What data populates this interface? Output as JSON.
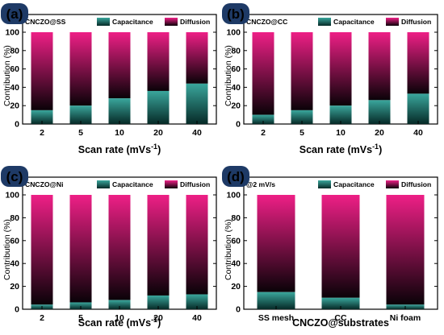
{
  "colors": {
    "capacitance_top": "#3aa69c",
    "capacitance_bottom": "#062a27",
    "diffusion_top": "#ee1f86",
    "diffusion_bottom": "#0a0208",
    "badge_fill": "#1e3a66",
    "badge_text": "#ffffff"
  },
  "chart_data": [
    {
      "type": "bar",
      "stacked": true,
      "panel_label": "(a)",
      "inner_title": "CNCZO@SS",
      "categories": [
        "2",
        "5",
        "10",
        "20",
        "40"
      ],
      "xlabel": "Scan rate (mVs",
      "xlabel_sup": "-1",
      "xlabel_tail": ")",
      "ylabel": "Contribution (%)",
      "ylim": [
        0,
        100
      ],
      "yticks": [
        "0",
        "20",
        "40",
        "60",
        "80",
        "100"
      ],
      "legend": [
        "Capacitance",
        "Diffusion"
      ],
      "series": [
        {
          "name": "Capacitance",
          "values": [
            15,
            20,
            28,
            36,
            44
          ]
        },
        {
          "name": "Diffusion",
          "values": [
            85,
            80,
            72,
            64,
            56
          ]
        }
      ]
    },
    {
      "type": "bar",
      "stacked": true,
      "panel_label": "(b)",
      "inner_title": "CNCZO@CC",
      "categories": [
        "2",
        "5",
        "10",
        "20",
        "40"
      ],
      "xlabel": "Scan rate (mVs",
      "xlabel_sup": "-1",
      "xlabel_tail": ")",
      "ylabel": "Contribution (%)",
      "ylim": [
        0,
        100
      ],
      "yticks": [
        "0",
        "20",
        "40",
        "60",
        "80",
        "100"
      ],
      "legend": [
        "Capacitance",
        "Diffusion"
      ],
      "series": [
        {
          "name": "Capacitance",
          "values": [
            10,
            15,
            20,
            26,
            33
          ]
        },
        {
          "name": "Diffusion",
          "values": [
            90,
            85,
            80,
            74,
            67
          ]
        }
      ]
    },
    {
      "type": "bar",
      "stacked": true,
      "panel_label": "(c)",
      "inner_title": "CNCZO@Ni",
      "categories": [
        "2",
        "5",
        "10",
        "20",
        "40"
      ],
      "xlabel": "Scan rate (mVs",
      "xlabel_sup": "-1",
      "xlabel_tail": ")",
      "ylabel": "Contribution (%)",
      "ylim": [
        0,
        100
      ],
      "yticks": [
        "0",
        "20",
        "40",
        "60",
        "80",
        "100"
      ],
      "legend": [
        "Capacitance",
        "Diffusion"
      ],
      "series": [
        {
          "name": "Capacitance",
          "values": [
            4,
            6,
            8,
            12,
            13
          ]
        },
        {
          "name": "Diffusion",
          "values": [
            96,
            94,
            92,
            88,
            87
          ]
        }
      ]
    },
    {
      "type": "bar",
      "stacked": true,
      "panel_label": "(d)",
      "inner_title": "@2 mV/s",
      "categories": [
        "SS mesh",
        "CC",
        "Ni foam"
      ],
      "xlabel": "CNCZO@substrates",
      "xlabel_sup": "",
      "xlabel_tail": "",
      "ylabel": "Contribution (%)",
      "ylim": [
        0,
        100
      ],
      "yticks": [
        "0",
        "20",
        "40",
        "60",
        "80",
        "100"
      ],
      "legend": [
        "Capacitance",
        "Diffusion"
      ],
      "series": [
        {
          "name": "Capacitance",
          "values": [
            15,
            10,
            4
          ]
        },
        {
          "name": "Diffusion",
          "values": [
            85,
            90,
            96
          ]
        }
      ]
    }
  ]
}
